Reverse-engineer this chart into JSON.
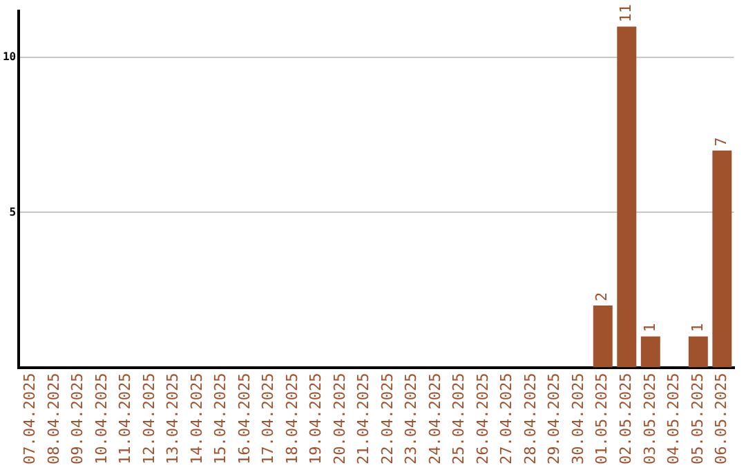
{
  "chart_data": {
    "type": "bar",
    "categories": [
      "07.04.2025",
      "08.04.2025",
      "09.04.2025",
      "10.04.2025",
      "11.04.2025",
      "12.04.2025",
      "13.04.2025",
      "14.04.2025",
      "15.04.2025",
      "16.04.2025",
      "17.04.2025",
      "18.04.2025",
      "19.04.2025",
      "20.04.2025",
      "21.04.2025",
      "22.04.2025",
      "23.04.2025",
      "24.04.2025",
      "25.04.2025",
      "26.04.2025",
      "27.04.2025",
      "28.04.2025",
      "29.04.2025",
      "30.04.2025",
      "01.05.2025",
      "02.05.2025",
      "03.05.2025",
      "04.05.2025",
      "05.05.2025",
      "06.05.2025"
    ],
    "values": [
      0,
      0,
      0,
      0,
      0,
      0,
      0,
      0,
      0,
      0,
      0,
      0,
      0,
      0,
      0,
      0,
      0,
      0,
      0,
      0,
      0,
      0,
      0,
      0,
      2,
      11,
      1,
      0,
      1,
      7
    ],
    "value_labels": [
      null,
      null,
      null,
      null,
      null,
      null,
      null,
      null,
      null,
      null,
      null,
      null,
      null,
      null,
      null,
      null,
      null,
      null,
      null,
      null,
      null,
      null,
      null,
      null,
      "2",
      "11",
      "1",
      null,
      "1",
      "7"
    ],
    "color": "#a0522d",
    "ylim": [
      0,
      11.5
    ],
    "yticks": [
      5,
      10
    ],
    "grid": "y",
    "legend": false
  }
}
